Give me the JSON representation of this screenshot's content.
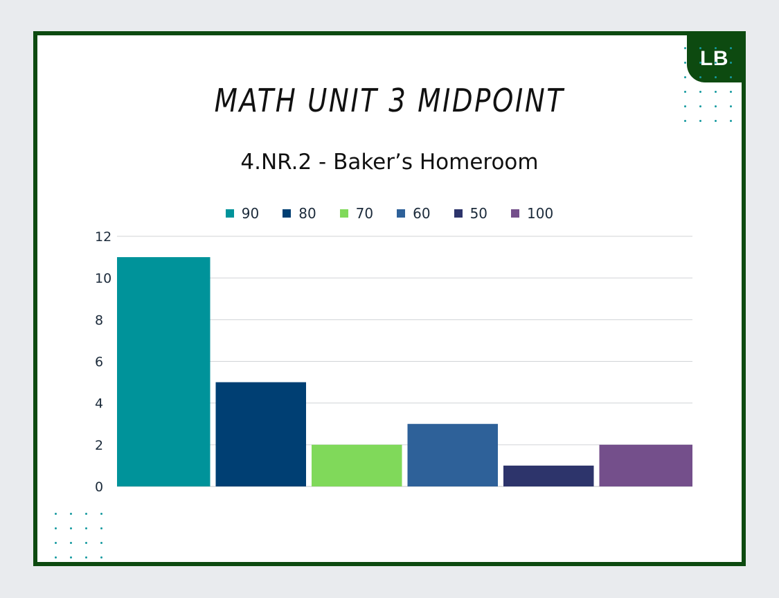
{
  "badge": "LB",
  "title": "MATH UNIT 3 MIDPOINT",
  "subtitle": "4.NR.2 - Baker’s Homeroom",
  "chart_data": {
    "type": "bar",
    "title": "MATH UNIT 3 MIDPOINT",
    "subtitle": "4.NR.2 - Baker’s Homeroom",
    "xlabel": "",
    "ylabel": "",
    "ylim": [
      0,
      12
    ],
    "yticks": [
      0,
      2,
      4,
      6,
      8,
      10,
      12
    ],
    "grid": true,
    "legend_position": "top",
    "series": [
      {
        "name": "90",
        "value": 11,
        "color": "#00939a"
      },
      {
        "name": "80",
        "value": 5,
        "color": "#003f73"
      },
      {
        "name": "70",
        "value": 2,
        "color": "#80d95a"
      },
      {
        "name": "60",
        "value": 3,
        "color": "#2e6199"
      },
      {
        "name": "50",
        "value": 1,
        "color": "#2d346b"
      },
      {
        "name": "100",
        "value": 2,
        "color": "#744f8b"
      }
    ]
  },
  "colors": {
    "frame": "#0d4a10",
    "dots": "#159aa0",
    "gridline": "#d0d3d6"
  }
}
